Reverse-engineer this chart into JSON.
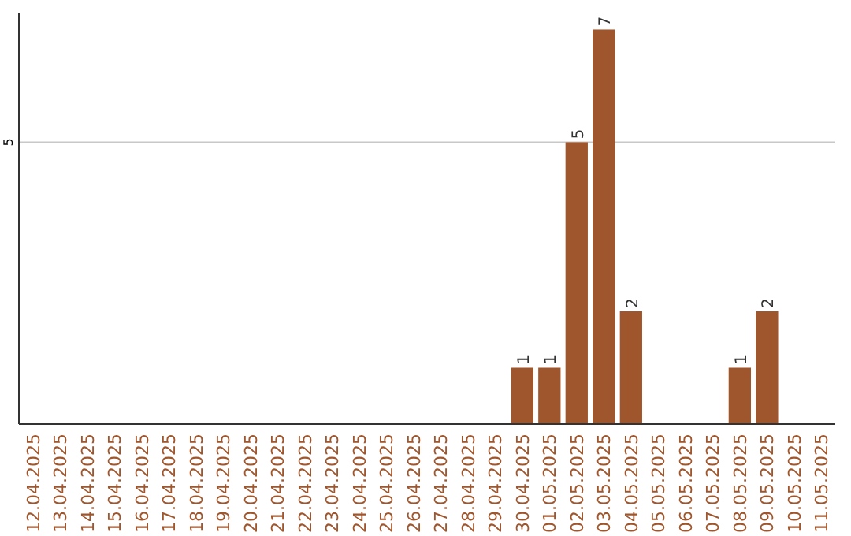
{
  "chart_data": {
    "type": "bar",
    "categories": [
      "12.04.2025",
      "13.04.2025",
      "14.04.2025",
      "15.04.2025",
      "16.04.2025",
      "17.04.2025",
      "18.04.2025",
      "19.04.2025",
      "20.04.2025",
      "21.04.2025",
      "22.04.2025",
      "23.04.2025",
      "24.04.2025",
      "25.04.2025",
      "26.04.2025",
      "27.04.2025",
      "28.04.2025",
      "29.04.2025",
      "30.04.2025",
      "01.05.2025",
      "02.05.2025",
      "03.05.2025",
      "04.05.2025",
      "05.05.2025",
      "06.05.2025",
      "07.05.2025",
      "08.05.2025",
      "09.05.2025",
      "10.05.2025",
      "11.05.2025"
    ],
    "values": [
      null,
      null,
      null,
      null,
      null,
      null,
      null,
      null,
      null,
      null,
      null,
      null,
      null,
      null,
      null,
      null,
      null,
      null,
      1,
      1,
      5,
      7,
      2,
      null,
      null,
      null,
      1,
      2,
      null,
      null
    ],
    "color": "#a0562c",
    "ylim": [
      0,
      7.3
    ],
    "yticks": [
      5
    ],
    "grid": "y",
    "data_labels": true
  }
}
